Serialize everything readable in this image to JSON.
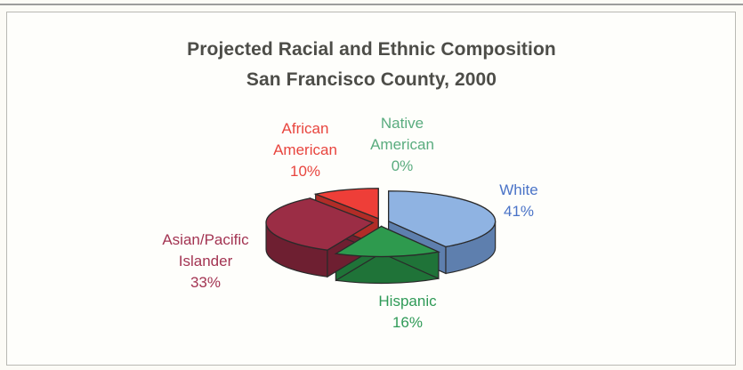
{
  "chart_data": {
    "type": "pie",
    "title": "Projected Racial and Ethnic Composition",
    "subtitle": "San Francisco County, 2000",
    "style": "3d-exploded",
    "slices": [
      {
        "label_lines": [
          "White"
        ],
        "value": 41,
        "value_label": "41%",
        "color": "#8fb3e2",
        "side_color": "#5e7fae",
        "text_color": "#4a73c7"
      },
      {
        "label_lines": [
          "Hispanic"
        ],
        "value": 16,
        "value_label": "16%",
        "color": "#2e9a4e",
        "side_color": "#1f7338",
        "text_color": "#2f9a57"
      },
      {
        "label_lines": [
          "Asian/Pacific",
          "Islander"
        ],
        "value": 33,
        "value_label": "33%",
        "color": "#9b2d45",
        "side_color": "#6e1f31",
        "text_color": "#a33452"
      },
      {
        "label_lines": [
          "African",
          "American"
        ],
        "value": 10,
        "value_label": "10%",
        "color": "#ee3e38",
        "side_color": "#b12c27",
        "text_color": "#e8453e"
      },
      {
        "label_lines": [
          "Native",
          "American"
        ],
        "value": 0,
        "value_label": "0%",
        "color": "#4fa874",
        "side_color": "#3a8a5a",
        "text_color": "#5aac7f"
      }
    ]
  }
}
